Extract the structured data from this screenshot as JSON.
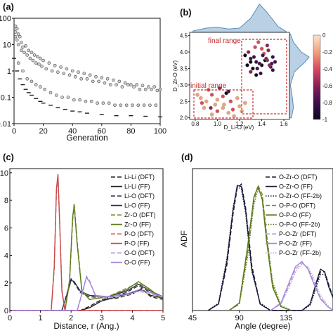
{
  "chart_data": [
    {
      "panel": "(a)",
      "type": "scatter",
      "xlabel": "Generation",
      "ylabel": "",
      "xlim": [
        0,
        100
      ],
      "ylim": [
        0.01,
        100
      ],
      "yscale": "log",
      "x_ticks": [
        "0",
        "20",
        "40",
        "60",
        "80",
        "100"
      ],
      "y_ticks": [
        "100",
        "10",
        "1",
        "0.1",
        "0.01"
      ],
      "series": [
        {
          "marker": "open-circle",
          "description_values": "population scatter",
          "x": [
            1,
            1,
            1,
            2,
            2,
            3,
            3,
            4,
            5,
            5,
            6,
            7,
            8,
            9,
            10,
            11,
            12,
            13,
            14,
            15,
            16,
            17,
            18,
            19,
            20,
            22,
            24,
            26,
            28,
            30,
            32,
            34,
            36,
            38,
            40,
            42,
            44,
            46,
            48,
            50,
            52,
            54,
            56,
            58,
            60,
            62,
            64,
            66,
            68,
            70,
            72,
            74,
            76,
            78,
            80,
            82,
            84,
            86,
            88,
            90,
            92,
            94,
            96,
            98,
            100,
            3,
            6,
            9,
            12,
            15,
            18,
            21,
            25,
            29,
            33,
            37,
            41,
            45,
            49,
            53,
            57,
            61,
            65,
            69,
            73,
            77,
            81,
            85,
            89,
            93,
            97
          ],
          "y": [
            50,
            30,
            20,
            40,
            15,
            25,
            10,
            20,
            12,
            6,
            8,
            5,
            9,
            4,
            6,
            3,
            5,
            2.5,
            4,
            2,
            3.5,
            1.8,
            3,
            1.5,
            2.5,
            1.2,
            2,
            1,
            1.6,
            0.9,
            1.4,
            0.8,
            1.2,
            0.7,
            1,
            0.6,
            0.9,
            0.5,
            0.8,
            0.5,
            0.7,
            0.4,
            0.6,
            0.4,
            0.55,
            0.35,
            0.5,
            0.3,
            0.45,
            0.3,
            0.4,
            0.25,
            0.35,
            0.3,
            0.3,
            0.25,
            0.3,
            0.2,
            0.28,
            0.2,
            0.25,
            0.2,
            0.25,
            0.18,
            0.2,
            2,
            1,
            0.5,
            0.4,
            0.3,
            0.25,
            0.2,
            0.15,
            0.12,
            0.1,
            0.1,
            0.08,
            0.08,
            0.07,
            0.07,
            0.06,
            0.06,
            0.06,
            0.05,
            0.05,
            0.05,
            0.05,
            0.05,
            0.05,
            0.05,
            0.05
          ]
        },
        {
          "marker": "minus",
          "description_values": "best per generation",
          "x": [
            0,
            2,
            4,
            6,
            8,
            10,
            12,
            15,
            18,
            20,
            25,
            30,
            35,
            40,
            45,
            50,
            60,
            70,
            80,
            90,
            100
          ],
          "y": [
            3,
            1,
            0.5,
            0.3,
            0.2,
            0.15,
            0.12,
            0.09,
            0.07,
            0.06,
            0.05,
            0.04,
            0.035,
            0.03,
            0.028,
            0.025,
            0.022,
            0.02,
            0.02,
            0.019,
            0.018
          ]
        }
      ]
    },
    {
      "panel": "(b)",
      "type": "scatter",
      "xlabel": "D_Li-O (eV)",
      "ylabel": "D_Zr-O (eV)",
      "xlim": [
        0.75,
        1.65
      ],
      "ylim": [
        1.95,
        4.6
      ],
      "x_ticks": [
        "0.8",
        "1.0",
        "1.2",
        "1.4",
        "1.6"
      ],
      "y_ticks": [
        "2.0",
        "2.5",
        "3.0",
        "3.5",
        "4.0",
        "4.5"
      ],
      "annotations": [
        "final range",
        "initial range"
      ],
      "colorbar_ticks": [
        "0",
        "-0.2",
        "-0.4",
        "-0.6",
        "-0.8",
        "-1"
      ],
      "colorbar_colors": [
        "#fbe3cf",
        "#f2a07b",
        "#d9485f",
        "#8a1f59",
        "#3b0f4f",
        "#0b0621"
      ],
      "marginal_color": "#5b8db8",
      "clusters": [
        {
          "name": "",
          "x": [
            0.85,
            0.9,
            0.95,
            1.0,
            1.05,
            1.1,
            0.88,
            0.98,
            1.12,
            1.2,
            1.25,
            0.82,
            0.92,
            1.02,
            1.08,
            1.18,
            1.22,
            0.95,
            1.0,
            1.05,
            1.1,
            1.15,
            0.86,
            0.94,
            1.06,
            1.14
          ],
          "y": [
            2.6,
            2.5,
            2.7,
            2.55,
            2.65,
            2.8,
            2.3,
            2.4,
            2.5,
            2.35,
            2.45,
            2.7,
            2.85,
            2.9,
            2.75,
            2.6,
            2.2,
            2.1,
            2.2,
            2.3,
            2.15,
            2.05,
            2.45,
            2.3,
            2.4,
            2.25
          ],
          "c": [
            -0.2,
            -0.1,
            -0.3,
            -0.2,
            -0.4,
            -0.8,
            -0.1,
            -0.2,
            -0.3,
            -0.2,
            -0.1,
            -0.2,
            -0.3,
            -0.5,
            -0.9,
            -0.2,
            -0.1,
            -0.2,
            -0.3,
            -0.2,
            -0.1,
            -0.2,
            -0.3,
            -0.6,
            -0.2,
            -0.4
          ]
        },
        {
          "name": "",
          "x": [
            1.25,
            1.3,
            1.35,
            1.4,
            1.45,
            1.5,
            1.28,
            1.32,
            1.38,
            1.42,
            1.48,
            1.52,
            1.3,
            1.35,
            1.4,
            1.45,
            1.5,
            1.27,
            1.33,
            1.37,
            1.43,
            1.47,
            1.36,
            1.41,
            1.46,
            1.3,
            1.39,
            1.44,
            1.34,
            1.49
          ],
          "y": [
            3.9,
            3.8,
            3.7,
            3.6,
            3.75,
            3.85,
            4.0,
            3.5,
            3.65,
            3.95,
            3.55,
            3.7,
            3.4,
            3.3,
            4.1,
            4.2,
            3.45,
            3.6,
            3.85,
            4.3,
            3.75,
            3.6,
            3.5,
            3.9,
            4.05,
            3.7,
            3.35,
            3.8,
            4.15,
            3.65
          ],
          "c": [
            -0.9,
            -0.8,
            -0.7,
            -0.95,
            -0.6,
            -0.85,
            -0.5,
            -0.9,
            -0.75,
            -0.4,
            -0.8,
            -0.7,
            -0.6,
            -0.9,
            -0.3,
            -0.5,
            -0.85,
            -0.9,
            -0.7,
            -0.4,
            -0.95,
            -0.6,
            -0.8,
            -0.85,
            -0.5,
            -0.9,
            -0.7,
            -0.6,
            -0.4,
            -0.8
          ]
        }
      ]
    },
    {
      "panel": "(c)",
      "type": "line",
      "xlabel": "Distance, r (Ang.)",
      "ylabel": "",
      "xlim": [
        0,
        5
      ],
      "ylim": [
        0,
        10.3
      ],
      "x_ticks": [
        "0",
        "1",
        "2",
        "3",
        "4",
        "5"
      ],
      "y_ticks": [
        "0",
        "2",
        "4",
        "6",
        "8",
        "10"
      ],
      "series": [
        {
          "name": "Li-Li (DFT)",
          "color": "#222222",
          "dash": "6,3",
          "x": [
            0,
            2.3,
            2.6,
            3.0,
            3.5,
            4.0,
            4.3,
            4.6,
            5.0
          ],
          "y": [
            0,
            0,
            0.3,
            0.8,
            0.9,
            1.2,
            1.6,
            1.0,
            0.8
          ]
        },
        {
          "name": "Li-Li (FF)",
          "color": "#222222",
          "dash": "",
          "x": [
            0,
            2.3,
            2.6,
            3.0,
            3.5,
            4.0,
            4.3,
            4.6,
            5.0
          ],
          "y": [
            0,
            0,
            0.2,
            0.7,
            1.0,
            1.3,
            1.5,
            1.1,
            0.9
          ]
        },
        {
          "name": "Li-O (DFT)",
          "color": "#2b2d4a",
          "dash": "6,3",
          "x": [
            0,
            1.7,
            1.9,
            2.0,
            2.1,
            2.3,
            2.6,
            3.2,
            3.8,
            4.2,
            4.6,
            5.0
          ],
          "y": [
            0,
            0,
            1.5,
            2.3,
            2.0,
            1.3,
            1.0,
            0.9,
            1.3,
            1.8,
            1.3,
            1.0
          ]
        },
        {
          "name": "Li-O (FF)",
          "color": "#2b2d4a",
          "dash": "",
          "x": [
            0,
            1.7,
            1.9,
            2.0,
            2.1,
            2.3,
            2.6,
            3.2,
            3.8,
            4.2,
            4.6,
            5.0
          ],
          "y": [
            0,
            0,
            1.4,
            2.2,
            2.1,
            1.4,
            1.1,
            1.0,
            1.4,
            1.9,
            1.4,
            1.0
          ]
        },
        {
          "name": "Zr-O (DFT)",
          "color": "#7a8a2e",
          "dash": "6,3",
          "x": [
            0,
            1.8,
            1.95,
            2.05,
            2.1,
            2.2,
            2.35,
            2.6,
            3.2,
            3.8,
            4.2,
            4.6,
            5.0
          ],
          "y": [
            0,
            0,
            2.0,
            6.5,
            7.8,
            5.0,
            1.5,
            0.8,
            1.0,
            1.6,
            2.0,
            1.4,
            0.8
          ]
        },
        {
          "name": "Zr-O (FF)",
          "color": "#5d7a1e",
          "dash": "",
          "x": [
            0,
            1.8,
            1.95,
            2.05,
            2.1,
            2.2,
            2.35,
            2.6,
            3.2,
            3.8,
            4.2,
            4.6,
            5.0
          ],
          "y": [
            0,
            0,
            2.2,
            6.8,
            7.6,
            4.8,
            1.4,
            0.8,
            1.0,
            1.5,
            2.1,
            1.5,
            0.8
          ]
        },
        {
          "name": "P-O (DFT)",
          "color": "#d56b6b",
          "dash": "6,3",
          "x": [
            0,
            1.35,
            1.45,
            1.52,
            1.57,
            1.62,
            1.7,
            1.8,
            5.0
          ],
          "y": [
            0,
            0,
            3.0,
            8.5,
            9.8,
            7.0,
            1.5,
            0,
            0
          ]
        },
        {
          "name": "P-O (FF)",
          "color": "#c84b4b",
          "dash": "",
          "x": [
            0,
            1.35,
            1.45,
            1.52,
            1.57,
            1.62,
            1.7,
            1.8,
            5.0
          ],
          "y": [
            0,
            0,
            3.2,
            8.8,
            9.9,
            6.8,
            1.4,
            0,
            0
          ]
        },
        {
          "name": "O-O (DFT)",
          "color": "#b9a3dc",
          "dash": "6,3",
          "x": [
            0,
            2.2,
            2.4,
            2.5,
            2.6,
            2.8,
            3.2,
            3.8,
            4.2,
            4.6,
            5.0
          ],
          "y": [
            0,
            0,
            1.5,
            2.5,
            2.2,
            1.0,
            0.9,
            1.1,
            1.4,
            1.2,
            1.0
          ]
        },
        {
          "name": "O-O (FF)",
          "color": "#a585d8",
          "dash": "",
          "x": [
            0,
            2.2,
            2.4,
            2.5,
            2.6,
            2.8,
            3.2,
            3.8,
            4.2,
            4.6,
            5.0
          ],
          "y": [
            0,
            0,
            1.6,
            2.4,
            2.1,
            1.1,
            1.0,
            1.2,
            1.5,
            1.3,
            1.0
          ]
        }
      ]
    },
    {
      "panel": "(d)",
      "type": "line",
      "xlabel": "Angle (degree)",
      "ylabel": "ADF",
      "xlim": [
        45,
        180
      ],
      "ylim": [
        0,
        1.1
      ],
      "x_ticks": [
        "45",
        "90",
        "135"
      ],
      "series": [
        {
          "name": "O-Zr-O (DFT)",
          "color": "#1c1c3a",
          "dash": "6,3",
          "x": [
            60,
            70,
            78,
            84,
            88,
            92,
            96,
            102,
            110,
            120,
            150,
            158,
            164,
            168,
            172,
            176,
            180
          ],
          "y": [
            0,
            0.05,
            0.35,
            0.75,
            0.95,
            0.98,
            0.8,
            0.35,
            0.05,
            0,
            0,
            0.05,
            0.2,
            0.3,
            0.3,
            0.2,
            0.1
          ]
        },
        {
          "name": "O-Zr-O (FF)",
          "color": "#1c1c3a",
          "dash": "",
          "x": [
            60,
            70,
            78,
            84,
            88,
            92,
            96,
            102,
            110,
            120,
            150,
            158,
            164,
            168,
            172,
            176,
            180
          ],
          "y": [
            0,
            0.05,
            0.38,
            0.78,
            0.97,
            0.96,
            0.78,
            0.32,
            0.05,
            0,
            0,
            0.05,
            0.22,
            0.32,
            0.3,
            0.18,
            0.1
          ]
        },
        {
          "name": "O-Zr-O (FF-2b)",
          "color": "#1c1c3a",
          "dash": "1.5,2",
          "x": [
            60,
            70,
            78,
            84,
            88,
            92,
            96,
            102,
            110,
            120,
            150,
            158,
            164,
            168,
            172,
            176,
            180
          ],
          "y": [
            0,
            0.06,
            0.4,
            0.8,
            0.96,
            0.94,
            0.75,
            0.3,
            0.06,
            0,
            0,
            0.04,
            0.18,
            0.28,
            0.28,
            0.18,
            0.1
          ]
        },
        {
          "name": "O-P-O (DFT)",
          "color": "#7a8a2e",
          "dash": "6,3",
          "x": [
            80,
            90,
            98,
            104,
            108,
            112,
            116,
            122,
            130,
            140
          ],
          "y": [
            0,
            0.05,
            0.45,
            0.85,
            0.97,
            0.9,
            0.6,
            0.2,
            0.03,
            0
          ]
        },
        {
          "name": "O-P-O (FF)",
          "color": "#5d7a1e",
          "dash": "",
          "x": [
            80,
            90,
            98,
            104,
            108,
            112,
            116,
            122,
            130,
            140
          ],
          "y": [
            0,
            0.06,
            0.5,
            0.88,
            0.96,
            0.86,
            0.55,
            0.18,
            0.03,
            0
          ]
        },
        {
          "name": "O-P-O (FF-2b)",
          "color": "#5d7a1e",
          "dash": "1.5,2",
          "x": [
            80,
            90,
            98,
            104,
            108,
            112,
            116,
            122,
            130,
            140
          ],
          "y": [
            0,
            0.05,
            0.42,
            0.82,
            0.94,
            0.88,
            0.6,
            0.22,
            0.04,
            0
          ]
        },
        {
          "name": "P-O-Zr (DFT)",
          "color": "#b9a3dc",
          "dash": "6,3",
          "x": [
            120,
            130,
            138,
            144,
            150,
            156,
            162,
            168,
            175,
            180
          ],
          "y": [
            0,
            0.05,
            0.2,
            0.32,
            0.37,
            0.33,
            0.22,
            0.1,
            0.03,
            0
          ]
        },
        {
          "name": "P-O-Zr (FF)",
          "color": "#a585d8",
          "dash": "",
          "x": [
            120,
            130,
            138,
            144,
            150,
            156,
            162,
            168,
            175,
            180
          ],
          "y": [
            0,
            0.06,
            0.22,
            0.34,
            0.38,
            0.32,
            0.2,
            0.09,
            0.03,
            0
          ]
        },
        {
          "name": "P-O-Zr (FF-2b)",
          "color": "#b9a3dc",
          "dash": "1.5,2",
          "x": [
            120,
            130,
            138,
            144,
            150,
            156,
            162,
            168,
            175,
            180
          ],
          "y": [
            0,
            0.05,
            0.18,
            0.3,
            0.36,
            0.34,
            0.24,
            0.12,
            0.04,
            0
          ]
        }
      ]
    }
  ]
}
